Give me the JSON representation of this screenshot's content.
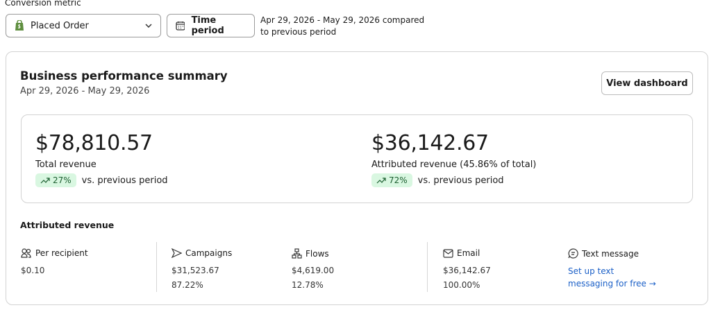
{
  "header": {
    "conversion_metric_label": "Conversion metric",
    "metric_select": "Placed Order",
    "time_button": "Time period",
    "period_text": "Apr 29, 2026 - May 29, 2026 compared to previous period"
  },
  "summary": {
    "title": "Business performance summary",
    "date_range": "Apr 29, 2026 - May 29, 2026",
    "button": "View dashboard",
    "kpis": [
      {
        "value": "$78,810.57",
        "label": "Total revenue",
        "change": "27%",
        "change_text": "vs. previous period"
      },
      {
        "value": "$36,142.67",
        "label": "Attributed revenue (45.86% of total)",
        "change": "72%",
        "change_text": "vs. previous period"
      }
    ]
  },
  "attributed": {
    "title": "Attributed revenue",
    "per_recipient": {
      "label": "Per recipient",
      "value": "$0.10"
    },
    "campaigns": {
      "label": "Campaigns",
      "value": "$31,523.67",
      "share": "87.22%"
    },
    "flows": {
      "label": "Flows",
      "value": "$4,619.00",
      "share": "12.78%"
    },
    "email": {
      "label": "Email",
      "value": "$36,142.67",
      "share": "100.00%"
    },
    "text_message": {
      "label": "Text message",
      "link": "Set up text messaging for free →"
    }
  }
}
